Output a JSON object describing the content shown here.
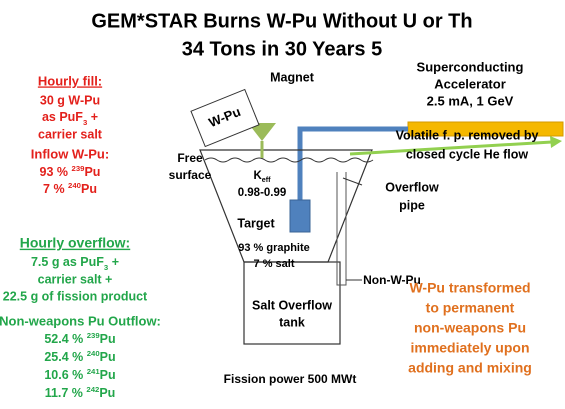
{
  "title": [
    "GEM*STAR  Burns W-Pu Without U or Th",
    "34 Tons in 30 Years 5"
  ],
  "hourly_fill": {
    "heading": "Hourly  fill:",
    "lines": [
      "30 g W-Pu",
      [
        "as PuF",
        {
          "sub": "3"
        },
        " +"
      ],
      "carrier salt"
    ]
  },
  "inflow": {
    "heading": "Inflow W-Pu:",
    "lines": [
      [
        "93 % ",
        {
          "sup": "239"
        },
        "Pu"
      ],
      [
        "7 % ",
        {
          "sup": "240"
        },
        "Pu"
      ]
    ]
  },
  "accelerator": [
    "Superconducting",
    "Accelerator",
    "2.5 mA, 1 GeV"
  ],
  "magnet": "Magnet",
  "wpu_box": "W-Pu",
  "volatile": [
    "Volatile f. p. removed by",
    "closed cycle He flow"
  ],
  "free_surface": [
    "Free",
    "surface"
  ],
  "keff": [
    [
      "K",
      {
        "sub": "eff"
      }
    ],
    "0.98-0.99"
  ],
  "overflow_pipe": [
    "Overflow",
    "pipe"
  ],
  "target": "Target",
  "composition": [
    "93 % graphite",
    "7 % salt"
  ],
  "non_w_pu": "Non-W-Pu",
  "hourly_overflow": {
    "heading": "Hourly overflow:",
    "lines": [
      [
        "7.5 g as PuF",
        {
          "sub": "3"
        },
        " +"
      ],
      "carrier salt +",
      "22.5 g of fission product"
    ]
  },
  "outflow": {
    "heading": "Non-weapons Pu Outflow:",
    "lines": [
      [
        "52.4 % ",
        {
          "sup": "239"
        },
        "Pu"
      ],
      [
        "25.4 % ",
        {
          "sup": "240"
        },
        "Pu"
      ],
      [
        "10.6 % ",
        {
          "sup": "241"
        },
        "Pu"
      ],
      [
        "11.7 % ",
        {
          "sup": "242"
        },
        "Pu"
      ]
    ]
  },
  "tank": [
    "Salt Overflow",
    "tank"
  ],
  "fission": "Fission power 500 MWt",
  "transformed": [
    "W-Pu transformed",
    "to permanent",
    "non-weapons Pu",
    "immediately upon",
    "adding and mixing"
  ]
}
